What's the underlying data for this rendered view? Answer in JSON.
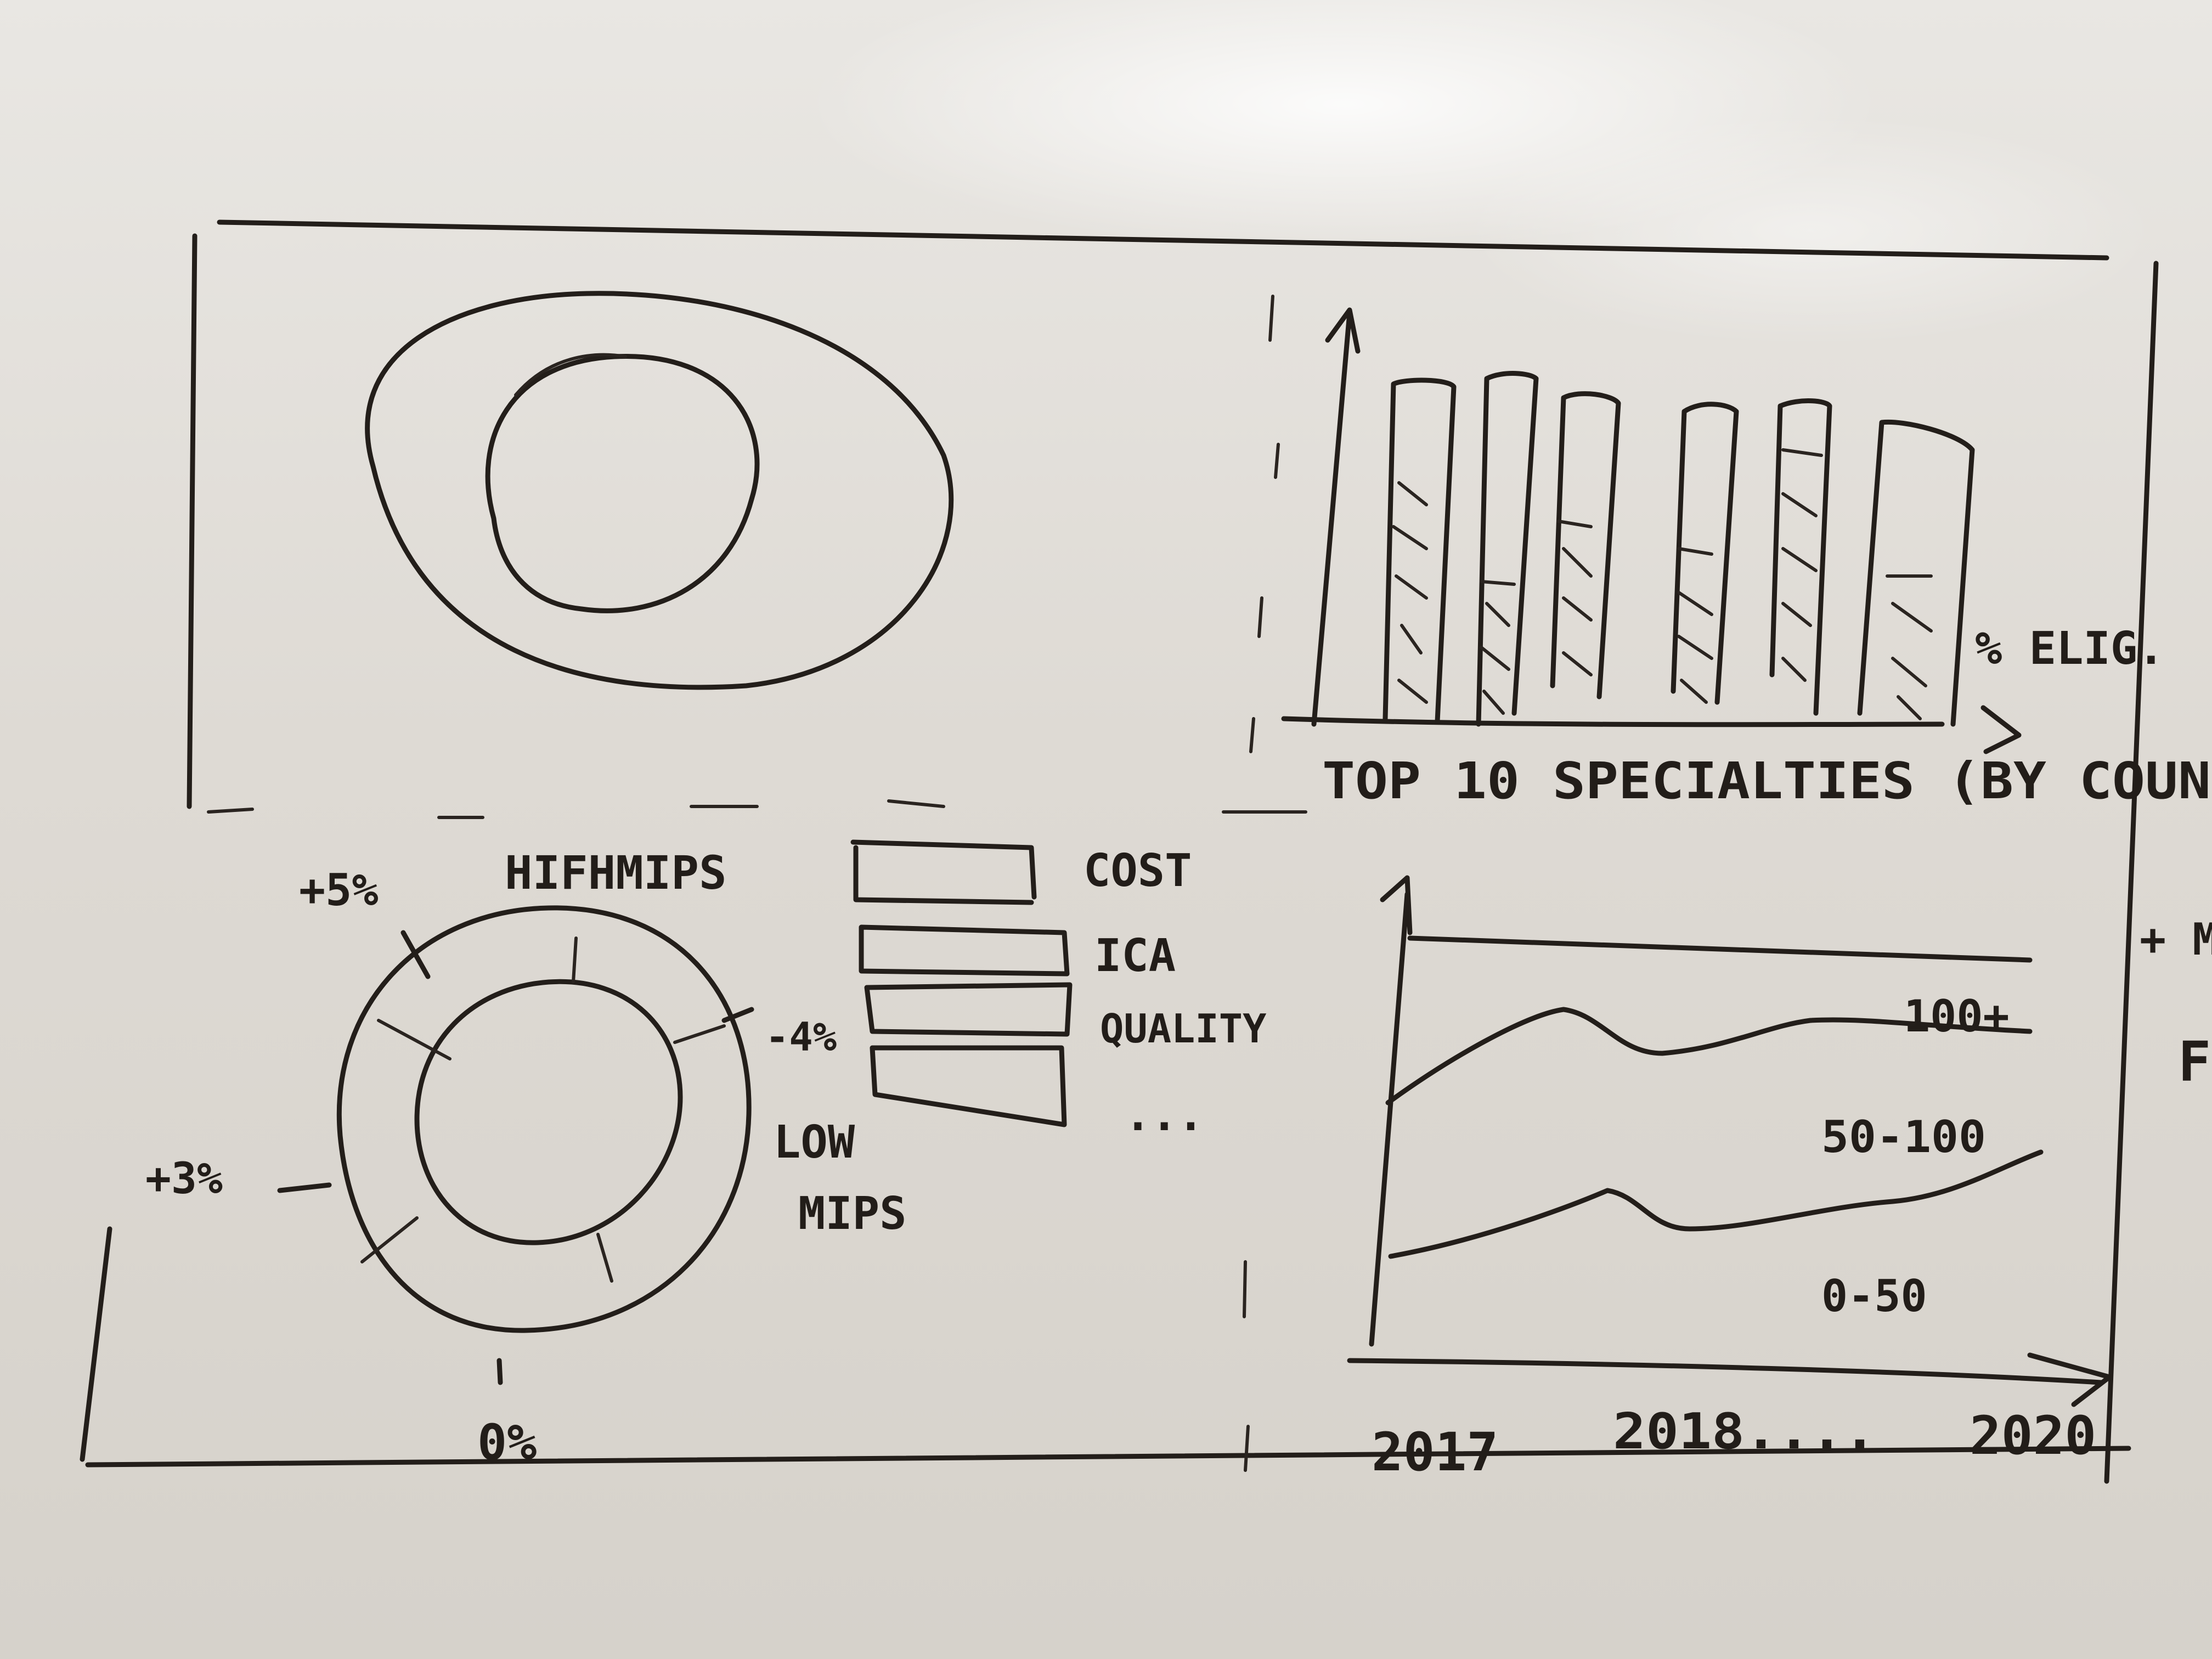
{
  "top_right_chart": {
    "axis_label_x": "TOP 10 SPECIALTIES (BY COUN",
    "series_label": "% ELIG."
  },
  "bottom_left_chart": {
    "title": "HIFHMIPS",
    "label_top": "+5%",
    "label_right": "-4%",
    "label_left": "+3%",
    "label_bottom": "0%",
    "low_label": "LOW",
    "mips_label": "MIPS"
  },
  "legend_bars": {
    "items": [
      "COST",
      "ICA",
      "QUALITY"
    ],
    "more": "..."
  },
  "bottom_right_chart": {
    "band_labels": [
      "100+",
      "50-100",
      "0-50"
    ],
    "x_start": "2017",
    "x_mid": "2018....",
    "x_end": "2020"
  },
  "edge_marks": [
    "+ M",
    "F"
  ]
}
